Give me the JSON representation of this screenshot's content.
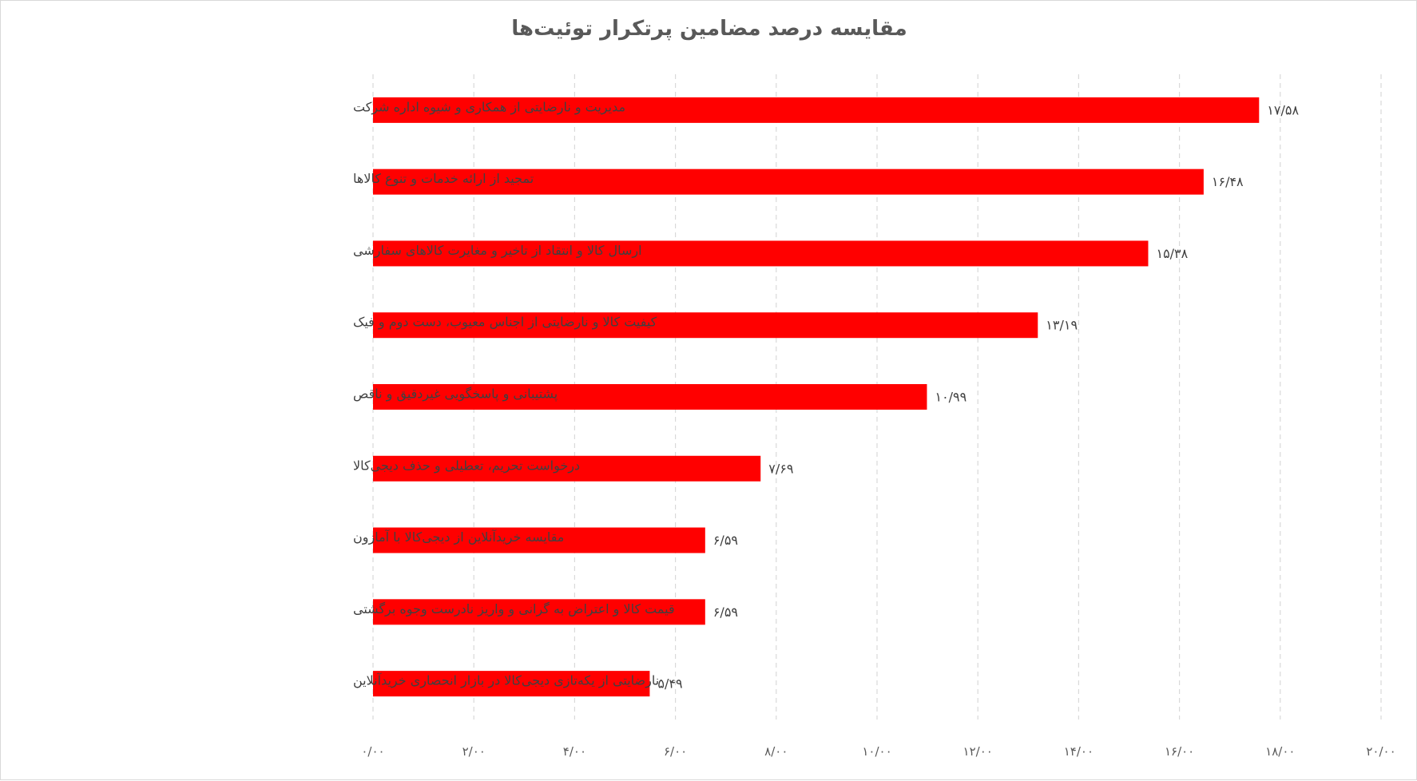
{
  "chart_data": {
    "type": "bar",
    "orientation": "horizontal",
    "title": "مقایسه درصد مضامین پرتکرار توئیت‌ها",
    "categories": [
      "مدیریت و نارضایتی از همکاری و شیوه اداره شرکت",
      "تمجید از ارائه خدمات و تنوع کالاها",
      "ارسال کالا و انتقاد از تاخیر و مغایرت کالاهای سفارشی",
      "کیفیت کالا و نارضایتی از اجناس معیوب، دست دوم و فیک",
      "پشتیبانی و پاسخگویی غیردقیق و ناقص",
      "درخواست تحریم، تعطیلی و حذف دیجی‌کالا",
      "مقایسه خریدآنلاین از دیجی‌کالا با آمازون",
      "قیمت کالا و اعتراض به گرانی و واریز نادرست وجوه برگشتی",
      "نارضایتی از یکه‌تازی دیجی‌کالا در بازار انحصاری خریدآنلاین"
    ],
    "values": [
      17.58,
      16.48,
      15.38,
      13.19,
      10.99,
      7.69,
      6.59,
      6.59,
      5.49
    ],
    "value_labels": [
      "۱۷/۵۸",
      "۱۶/۴۸",
      "۱۵/۳۸",
      "۱۳/۱۹",
      "۱۰/۹۹",
      "۷/۶۹",
      "۶/۵۹",
      "۶/۵۹",
      "۵/۴۹"
    ],
    "xlim": [
      0,
      20
    ],
    "x_ticks": [
      0,
      2,
      4,
      6,
      8,
      10,
      12,
      14,
      16,
      18,
      20
    ],
    "x_tick_labels": [
      "۰/۰۰",
      "۲/۰۰",
      "۴/۰۰",
      "۶/۰۰",
      "۸/۰۰",
      "۱۰/۰۰",
      "۱۲/۰۰",
      "۱۴/۰۰",
      "۱۶/۰۰",
      "۱۸/۰۰",
      "۲۰/۰۰"
    ],
    "grid": "vertical-dashed",
    "legend": "none",
    "colors": {
      "bar": "#ff0000",
      "grid": "#d9d9d9",
      "text": "#404040",
      "title": "#595959"
    }
  }
}
